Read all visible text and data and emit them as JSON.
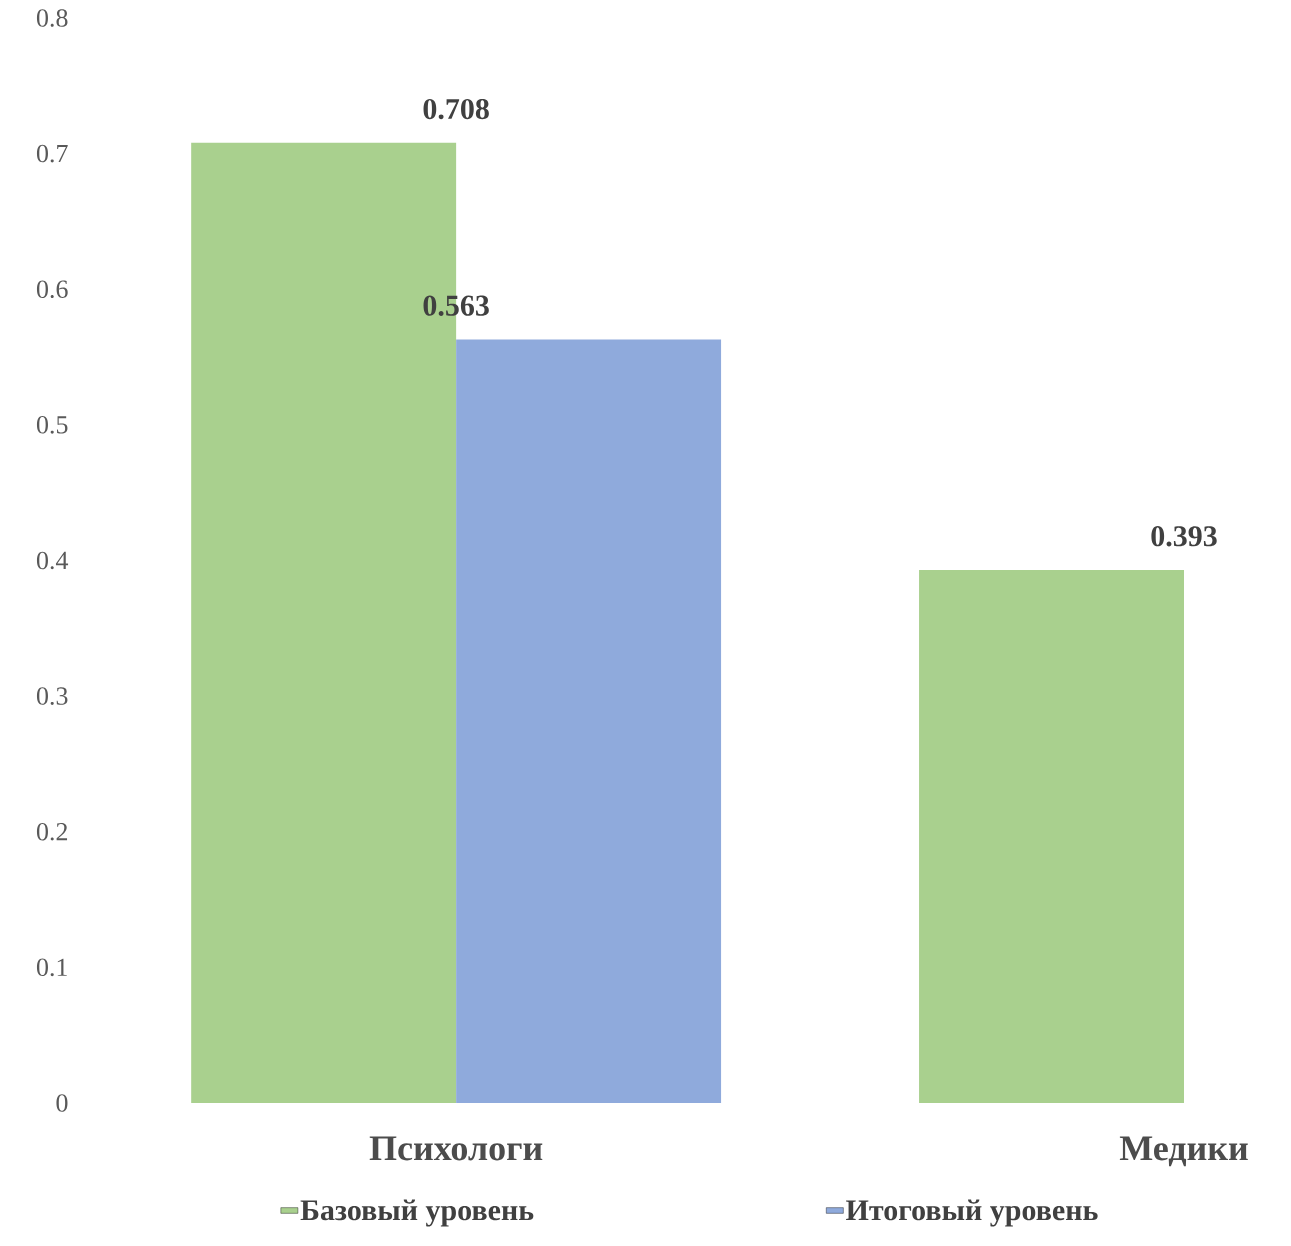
{
  "chart_data": {
    "type": "bar",
    "categories": [
      "Психологи",
      "Медики"
    ],
    "series": [
      {
        "name": "Базовый уровень",
        "color": "#a9d08e",
        "values": [
          0.708,
          0.393
        ]
      },
      {
        "name": "Итоговый уровень",
        "color": "#8faadc",
        "values": [
          0.563,
          null
        ]
      }
    ],
    "ylim": [
      0,
      0.8
    ],
    "yticks": [
      0,
      0.1,
      0.2,
      0.3,
      0.4,
      0.5,
      0.6,
      0.7,
      0.8
    ],
    "data_labels": true,
    "legend": "bottom",
    "grid": false
  }
}
